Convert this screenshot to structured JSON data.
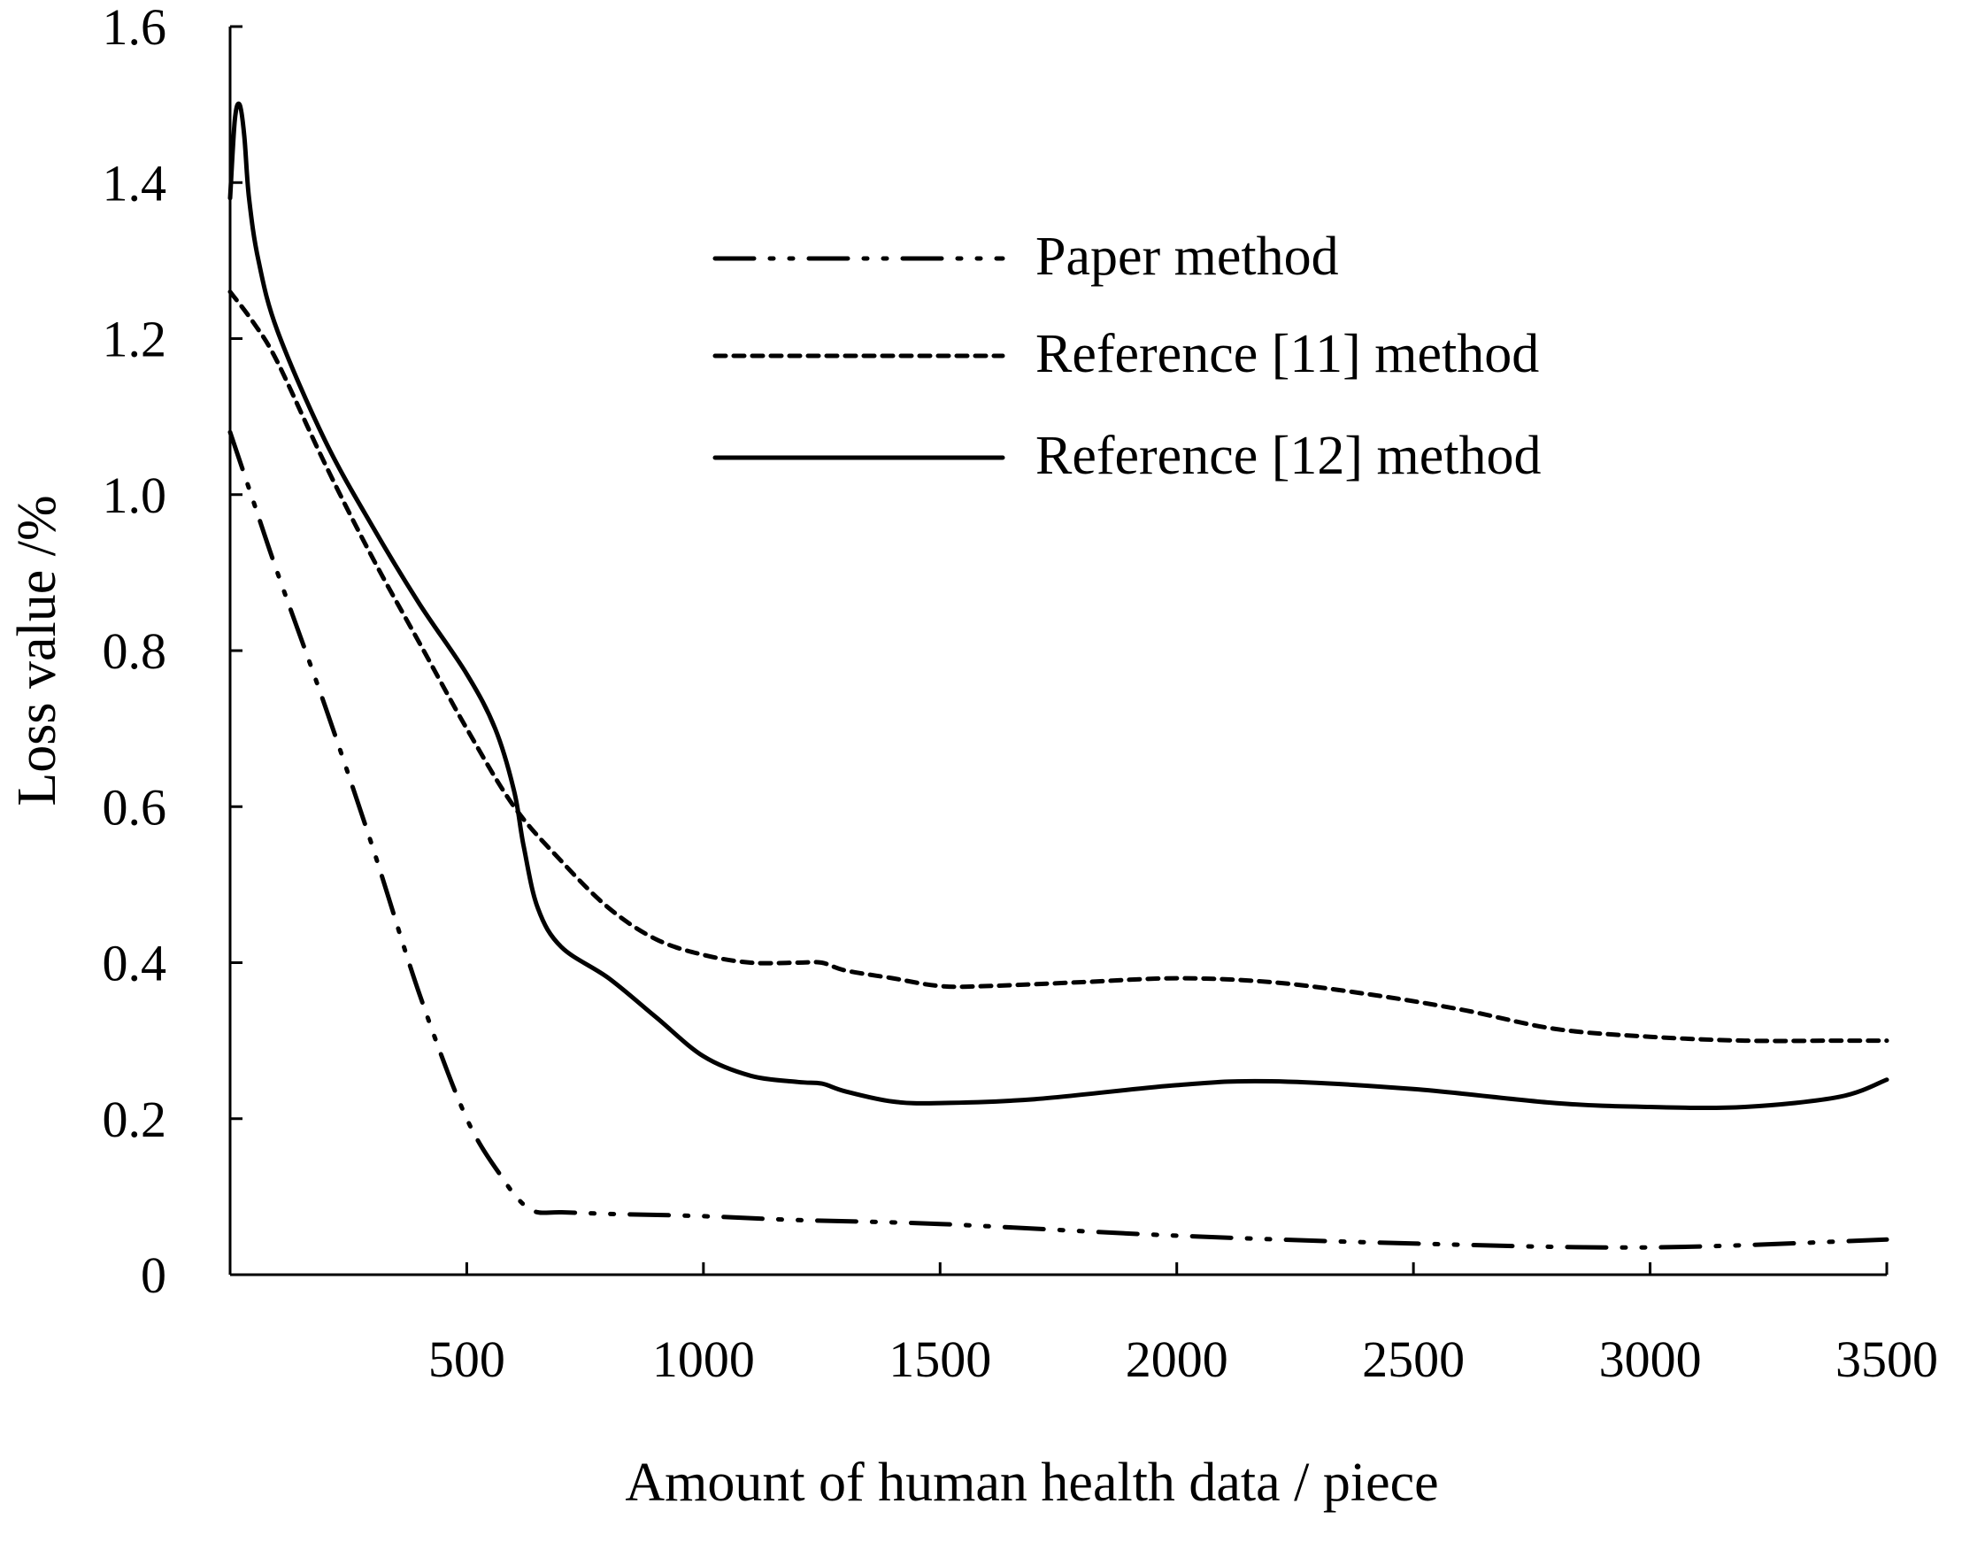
{
  "chart_data": {
    "type": "line",
    "title": "",
    "xlabel": "Amount of human health data / piece",
    "ylabel": "Loss value /%",
    "xlim": [
      0,
      3500
    ],
    "ylim": [
      0,
      1.6
    ],
    "x_ticks": [
      500,
      1000,
      1500,
      2000,
      2500,
      3000,
      3500
    ],
    "x_tick_labels": [
      "500",
      "1000",
      "1500",
      "2000",
      "2500",
      "3000",
      "3500"
    ],
    "y_ticks": [
      0,
      0.2,
      0.4,
      0.6,
      0.8,
      1.0,
      1.2,
      1.4,
      1.6
    ],
    "y_tick_labels": [
      "0",
      "0.2",
      "0.4",
      "0.6",
      "0.8",
      "1.0",
      "1.2",
      "1.4",
      "1.6"
    ],
    "grid": false,
    "legend_position": "top-right",
    "series": [
      {
        "name": "Paper method",
        "line_style": "dash-dot-dot",
        "x": [
          0,
          50,
          100,
          200,
          300,
          400,
          500,
          580,
          620,
          650,
          700,
          800,
          1000,
          1200,
          1500,
          2000,
          2500,
          3000,
          3500
        ],
        "y": [
          1.08,
          0.99,
          0.9,
          0.73,
          0.55,
          0.36,
          0.2,
          0.12,
          0.09,
          0.08,
          0.08,
          0.078,
          0.075,
          0.07,
          0.065,
          0.05,
          0.04,
          0.035,
          0.045
        ]
      },
      {
        "name": "Reference [11] method",
        "line_style": "dotted",
        "x": [
          0,
          50,
          100,
          200,
          300,
          400,
          500,
          600,
          700,
          800,
          900,
          1000,
          1100,
          1200,
          1250,
          1300,
          1400,
          1500,
          1600,
          1800,
          2000,
          2200,
          2400,
          2600,
          2800,
          3000,
          3200,
          3400,
          3500
        ],
        "y": [
          1.26,
          1.22,
          1.17,
          1.04,
          0.92,
          0.81,
          0.7,
          0.6,
          0.53,
          0.47,
          0.43,
          0.41,
          0.4,
          0.4,
          0.4,
          0.39,
          0.38,
          0.37,
          0.37,
          0.375,
          0.38,
          0.375,
          0.36,
          0.34,
          0.315,
          0.305,
          0.3,
          0.3,
          0.3
        ]
      },
      {
        "name": "Reference [12] method",
        "line_style": "solid",
        "x": [
          0,
          10,
          20,
          30,
          40,
          60,
          100,
          200,
          300,
          400,
          500,
          560,
          600,
          620,
          650,
          700,
          800,
          900,
          1000,
          1100,
          1200,
          1250,
          1300,
          1400,
          1500,
          1700,
          2000,
          2200,
          2500,
          2800,
          3000,
          3200,
          3400,
          3500
        ],
        "y": [
          1.38,
          1.48,
          1.5,
          1.46,
          1.38,
          1.3,
          1.21,
          1.07,
          0.96,
          0.86,
          0.77,
          0.7,
          0.62,
          0.55,
          0.47,
          0.42,
          0.38,
          0.33,
          0.28,
          0.255,
          0.247,
          0.245,
          0.235,
          0.222,
          0.22,
          0.225,
          0.243,
          0.248,
          0.238,
          0.22,
          0.215,
          0.215,
          0.228,
          0.25
        ]
      }
    ]
  }
}
